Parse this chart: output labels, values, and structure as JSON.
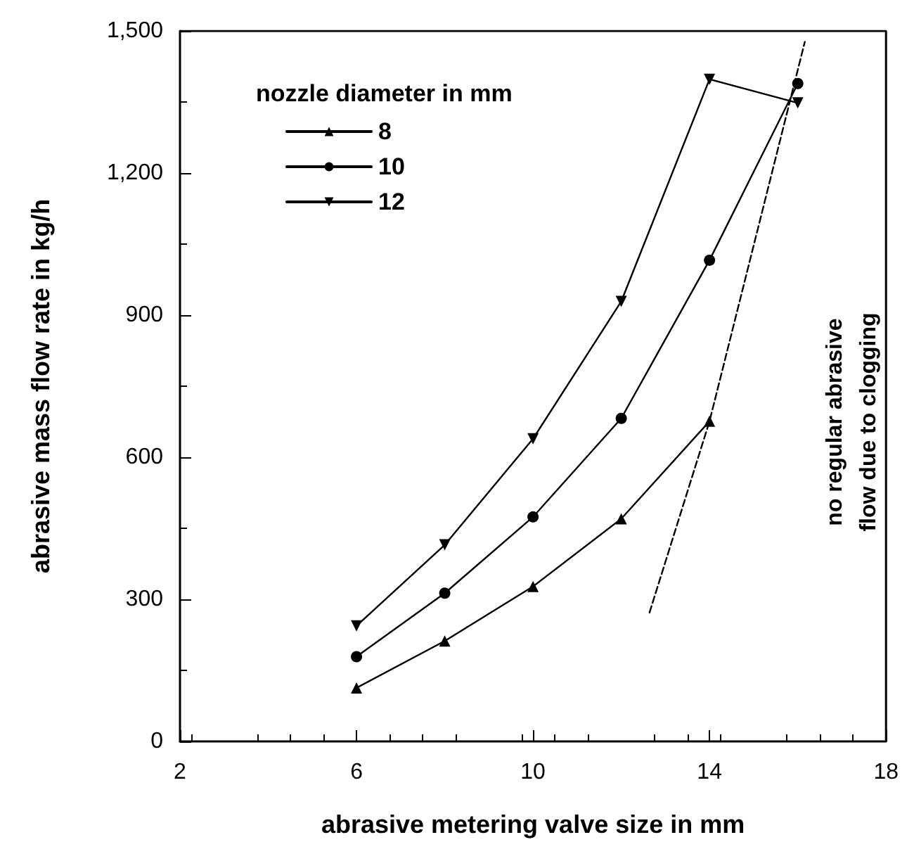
{
  "chart_data": {
    "type": "line",
    "xlabel": "abrasive metering valve size in mm",
    "ylabel": "abrasive mass flow rate in kg/h",
    "legend_title": "nozzle diameter in mm",
    "series": [
      {
        "name": "8",
        "color": "#000000",
        "marker": "triangle",
        "x": [
          6,
          8,
          10,
          12,
          14
        ],
        "values": [
          113,
          212,
          327,
          470,
          676
        ]
      },
      {
        "name": "10",
        "color": "#000000",
        "marker": "circle",
        "x": [
          6,
          8,
          10,
          12,
          14,
          16
        ],
        "values": [
          179,
          313,
          474,
          682,
          1016,
          1389
        ]
      },
      {
        "name": "12",
        "color": "#000000",
        "marker": "triangle-down",
        "x": [
          6,
          8,
          10,
          12,
          14,
          16
        ],
        "values": [
          244,
          415,
          639,
          929,
          1398,
          1348
        ]
      },
      {
        "type": "line",
        "color": "#000000",
        "marker": "none",
        "line_style": "dashed",
        "x": [
          12.64,
          14,
          16.16
        ],
        "values": [
          272,
          676,
          1477
        ]
      }
    ],
    "annotations": [
      "no regular abrasive\nflow due to clogging"
    ],
    "xlim": [
      2,
      18
    ],
    "xticks": [
      2,
      6,
      10,
      14,
      18
    ],
    "ylim": [
      0,
      1500
    ],
    "yticks": [
      0,
      300,
      600,
      900,
      {
        "value": 1200,
        "label": "1,200"
      },
      {
        "value": 1500,
        "label": "1,500"
      }
    ],
    "grid": false,
    "legend": "top left",
    "line_style": "solid"
  }
}
